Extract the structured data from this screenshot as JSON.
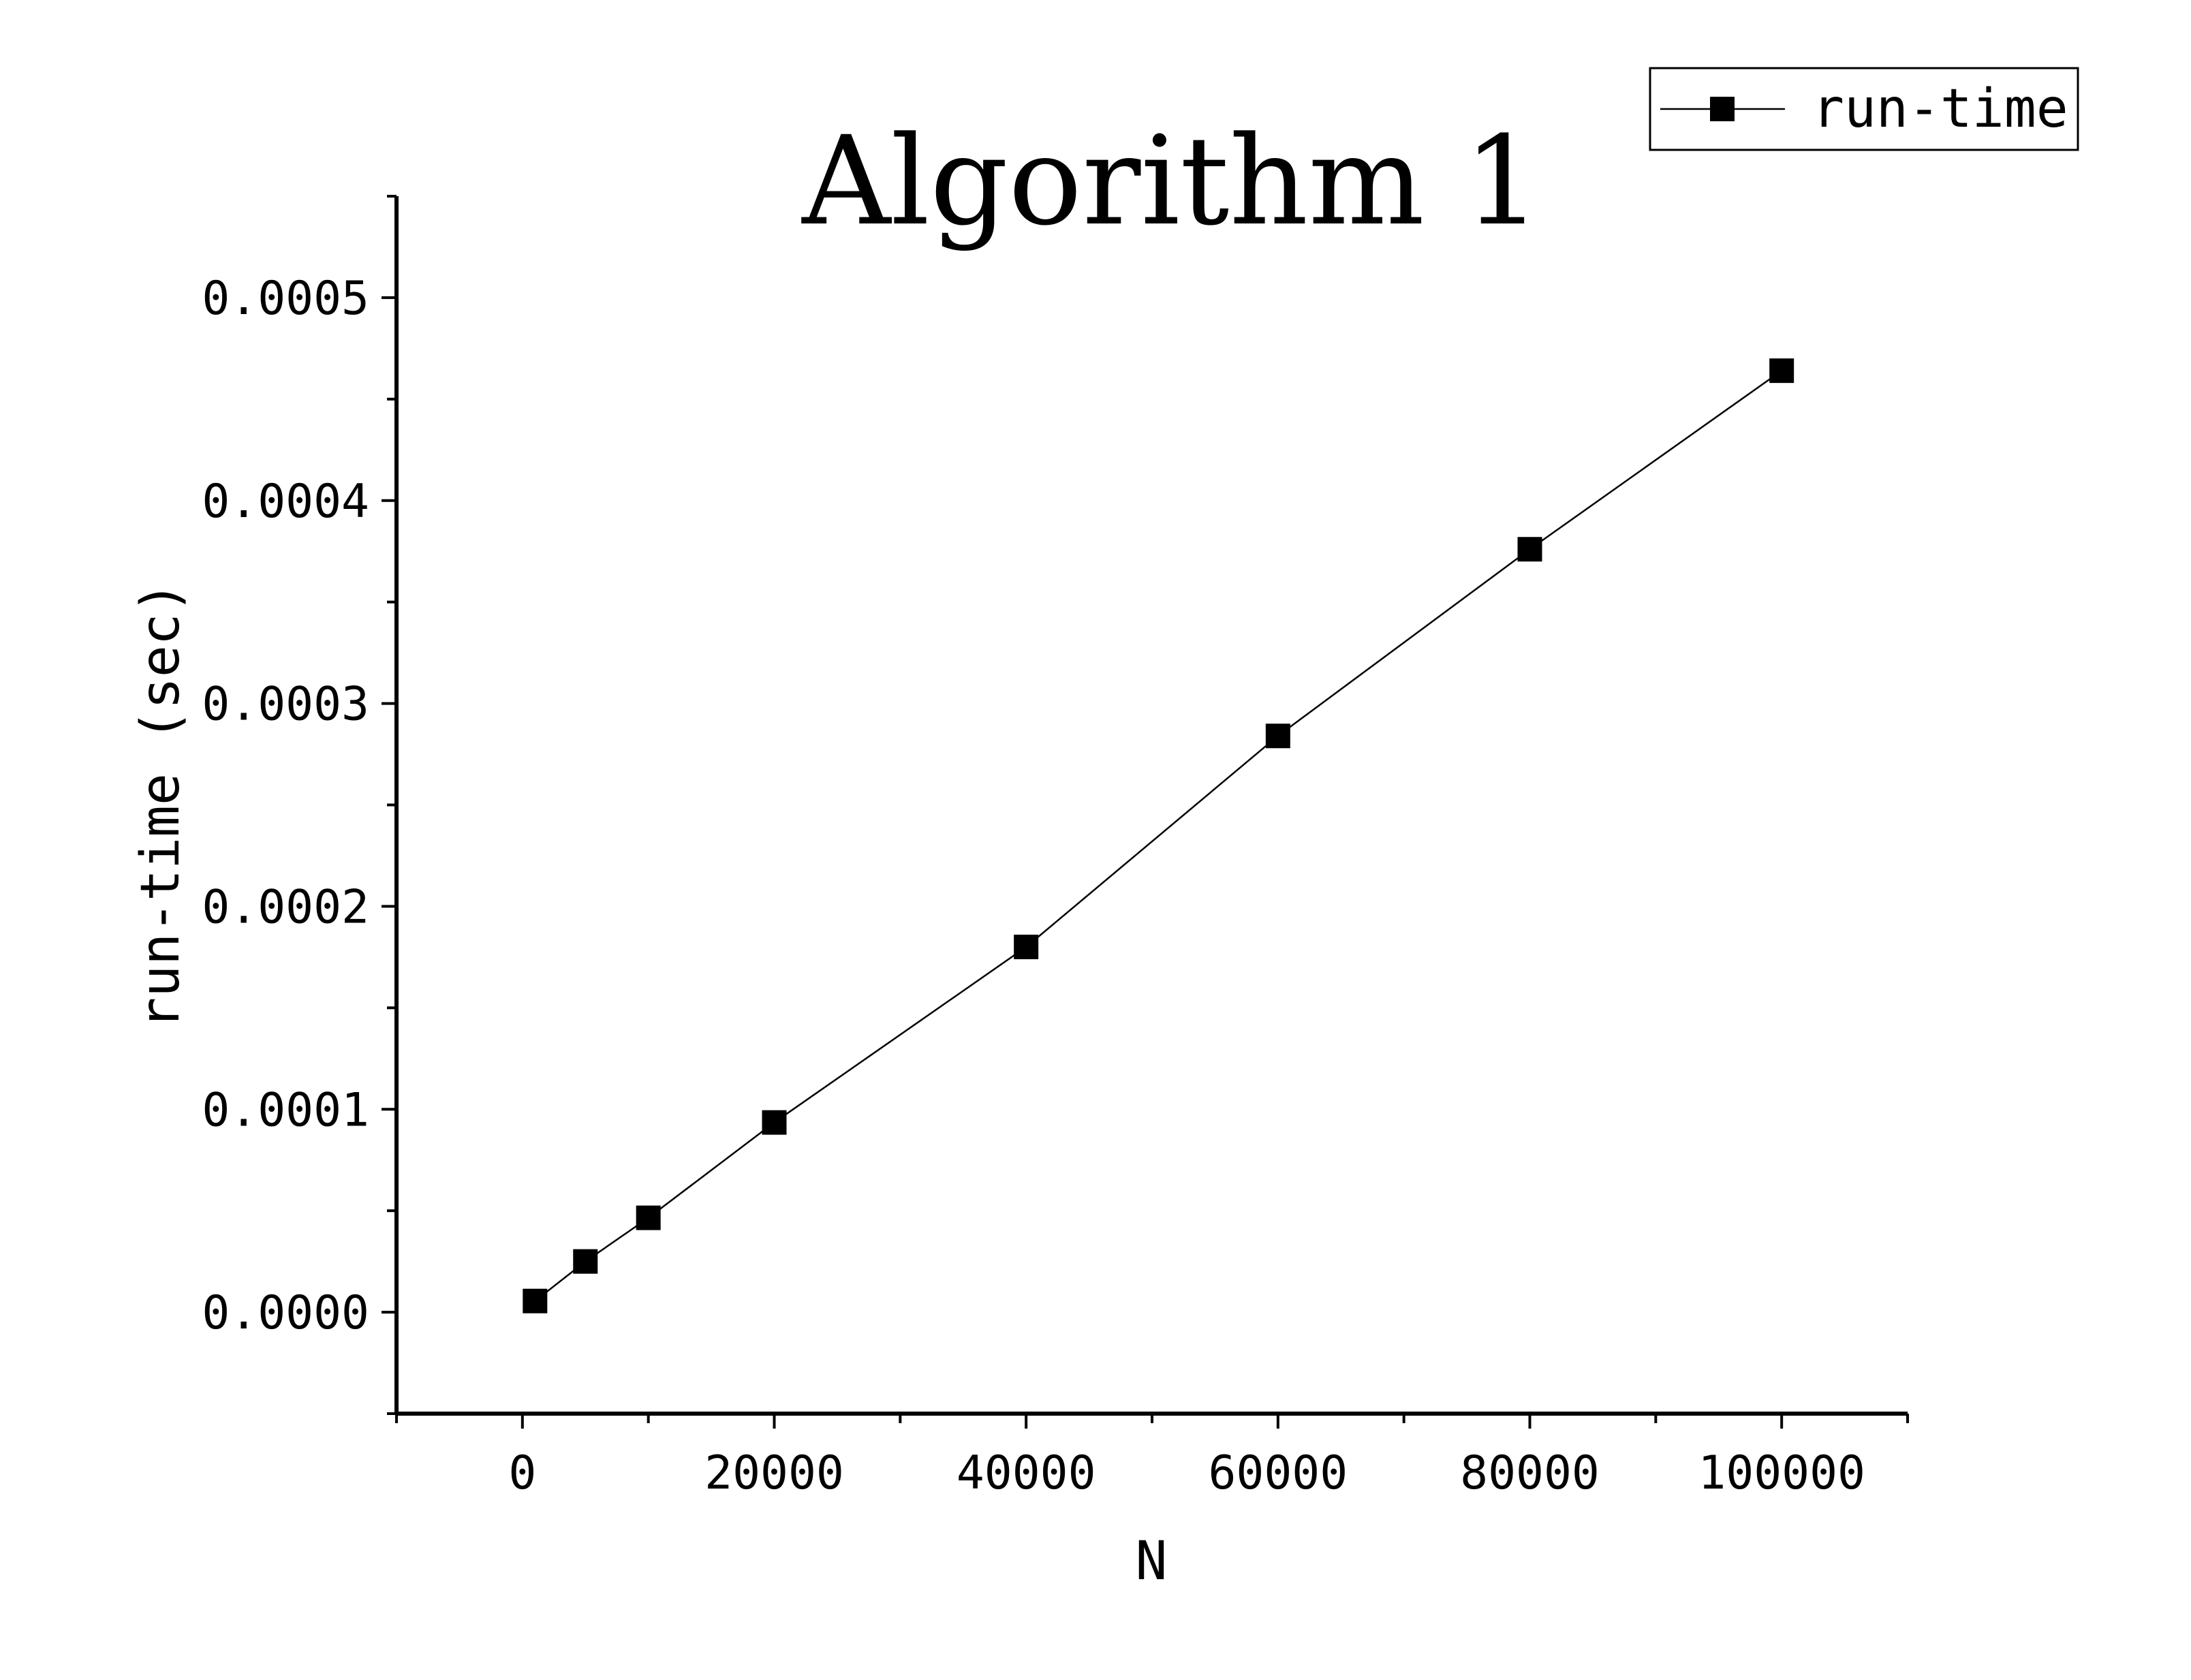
{
  "chart_data": {
    "type": "line",
    "title": "Algorithm 1",
    "xlabel": "N",
    "ylabel": "run-time (sec)",
    "xlim": [
      -10000,
      110000
    ],
    "ylim": [
      -5e-05,
      0.00055
    ],
    "x_ticks": [
      0,
      20000,
      40000,
      60000,
      80000,
      100000
    ],
    "x_tick_labels": [
      "0",
      "20000",
      "40000",
      "60000",
      "80000",
      "100000"
    ],
    "y_ticks": [
      0,
      0.0001,
      0.0002,
      0.0003,
      0.0004,
      0.0005
    ],
    "y_tick_labels": [
      "0.0000",
      "0.0001",
      "0.0002",
      "0.0003",
      "0.0004",
      "0.0005"
    ],
    "grid": false,
    "legend_position": "top-right",
    "series": [
      {
        "name": "run-time",
        "marker": "square",
        "color": "#000000",
        "x": [
          1000,
          5000,
          10000,
          20000,
          40000,
          60000,
          80000,
          100000
        ],
        "y": [
          5.5e-06,
          2.5e-05,
          4.65e-05,
          9.35e-05,
          0.00018,
          0.000284,
          0.000376,
          0.000464
        ]
      }
    ]
  }
}
